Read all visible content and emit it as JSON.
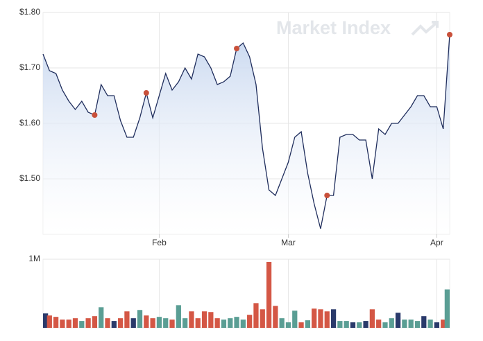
{
  "watermark": "Market Index",
  "chart_data": [
    {
      "type": "area",
      "categories": [
        null,
        null,
        null,
        null,
        null,
        null,
        null,
        null,
        null,
        null,
        null,
        null,
        null,
        null,
        null,
        null,
        null,
        null,
        "Feb",
        null,
        null,
        null,
        null,
        null,
        null,
        null,
        null,
        null,
        null,
        null,
        null,
        null,
        null,
        null,
        null,
        null,
        null,
        null,
        "Mar",
        null,
        null,
        null,
        null,
        null,
        null,
        null,
        null,
        null,
        null,
        null,
        null,
        null,
        null,
        null,
        null,
        null,
        null,
        null,
        null,
        null,
        null,
        "Apr",
        null,
        null
      ],
      "values": [
        1.725,
        1.695,
        1.69,
        1.66,
        1.64,
        1.625,
        1.64,
        1.62,
        1.615,
        1.67,
        1.65,
        1.65,
        1.605,
        1.575,
        1.575,
        1.61,
        1.655,
        1.61,
        1.65,
        1.69,
        1.66,
        1.675,
        1.7,
        1.68,
        1.725,
        1.72,
        1.7,
        1.67,
        1.675,
        1.685,
        1.735,
        1.745,
        1.72,
        1.67,
        1.555,
        1.48,
        1.47,
        1.5,
        1.53,
        1.575,
        1.585,
        1.51,
        1.455,
        1.41,
        1.47,
        1.47,
        1.575,
        1.58,
        1.58,
        1.57,
        1.57,
        1.5,
        1.59,
        1.58,
        1.6,
        1.6,
        1.615,
        1.63,
        1.65,
        1.65,
        1.63,
        1.63,
        1.59,
        1.76
      ],
      "color": "#1f2d5c",
      "fill_color": "#c6d6ef",
      "markers": [
        8,
        16,
        30,
        44,
        63
      ],
      "marker_color": "#c9503a",
      "ylim": [
        1.4,
        1.8
      ],
      "yticks": [
        {
          "value": 1.5,
          "label": "$1.50"
        },
        {
          "value": 1.6,
          "label": "$1.60"
        },
        {
          "value": 1.7,
          "label": "$1.70"
        },
        {
          "value": 1.8,
          "label": "$1.80"
        }
      ],
      "grid": true
    },
    {
      "type": "bar",
      "values": [
        210000,
        180000,
        160000,
        120000,
        120000,
        140000,
        100000,
        140000,
        170000,
        300000,
        140000,
        100000,
        140000,
        240000,
        140000,
        260000,
        180000,
        140000,
        160000,
        140000,
        120000,
        330000,
        140000,
        240000,
        140000,
        240000,
        230000,
        140000,
        120000,
        140000,
        160000,
        120000,
        190000,
        360000,
        270000,
        960000,
        320000,
        140000,
        80000,
        250000,
        80000,
        110000,
        280000,
        270000,
        240000,
        270000,
        100000,
        100000,
        80000,
        80000,
        100000,
        270000,
        120000,
        80000,
        140000,
        220000,
        120000,
        120000,
        100000,
        170000,
        120000,
        80000,
        120000,
        560000
      ],
      "colors": [
        "#2a3a6b",
        "#d45745",
        "#d45745",
        "#d45745",
        "#d45745",
        "#d45745",
        "#5a9e94",
        "#d45745",
        "#d45745",
        "#5a9e94",
        "#d45745",
        "#2a3a6b",
        "#d45745",
        "#d45745",
        "#2a3a6b",
        "#5a9e94",
        "#d45745",
        "#d45745",
        "#5a9e94",
        "#5a9e94",
        "#d45745",
        "#5a9e94",
        "#5a9e94",
        "#d45745",
        "#d45745",
        "#d45745",
        "#d45745",
        "#d45745",
        "#5a9e94",
        "#5a9e94",
        "#5a9e94",
        "#5a9e94",
        "#d45745",
        "#d45745",
        "#d45745",
        "#d45745",
        "#d45745",
        "#5a9e94",
        "#5a9e94",
        "#5a9e94",
        "#d45745",
        "#5a9e94",
        "#d45745",
        "#d45745",
        "#d45745",
        "#2a3a6b",
        "#5a9e94",
        "#5a9e94",
        "#2a3a6b",
        "#5a9e94",
        "#2a3a6b",
        "#d45745",
        "#d45745",
        "#5a9e94",
        "#5a9e94",
        "#2a3a6b",
        "#5a9e94",
        "#5a9e94",
        "#5a9e94",
        "#2a3a6b",
        "#5a9e94",
        "#2a3a6b",
        "#d45745",
        "#5a9e94"
      ],
      "ylim": [
        0,
        1000000
      ],
      "yticks": [
        {
          "value": 1000000,
          "label": "1M"
        }
      ],
      "grid": true
    }
  ]
}
